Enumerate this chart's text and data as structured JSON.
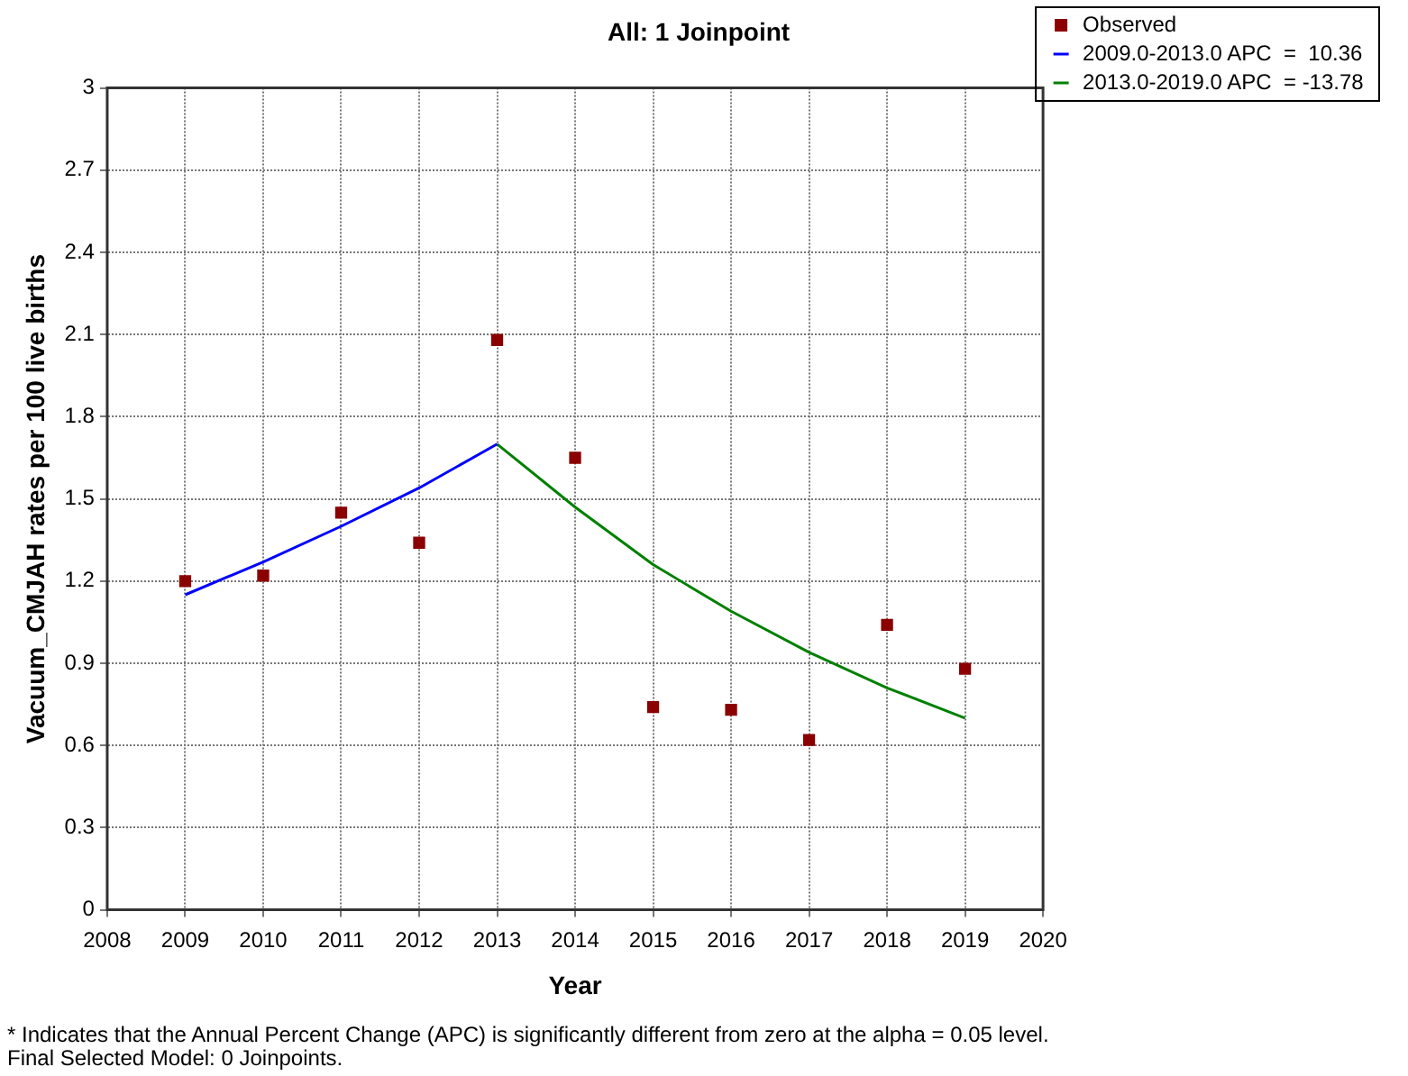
{
  "chart_data": {
    "type": "scatter",
    "title": "All: 1 Joinpoint",
    "xlabel": "Year",
    "ylabel": "Vacuum_CMJAH rates per 100 live births",
    "series": [
      {
        "name": "Observed",
        "type": "scatter",
        "color": "#8b0000",
        "marker": "square",
        "x": [
          2009,
          2010,
          2011,
          2012,
          2013,
          2014,
          2015,
          2016,
          2017,
          2018,
          2019
        ],
        "values": [
          1.2,
          1.22,
          1.45,
          1.34,
          2.08,
          1.65,
          0.74,
          0.73,
          0.62,
          1.04,
          0.88
        ]
      },
      {
        "name": "2009.0-2013.0 APC  =  10.36",
        "type": "line",
        "color": "#0000ff",
        "marker": "none",
        "x": [
          2009,
          2010,
          2011,
          2012,
          2013
        ],
        "values": [
          1.15,
          1.27,
          1.4,
          1.54,
          1.7
        ]
      },
      {
        "name": "2013.0-2019.0 APC  = -13.78",
        "type": "line",
        "color": "#008000",
        "marker": "none",
        "x": [
          2013,
          2014,
          2015,
          2016,
          2017,
          2018,
          2019
        ],
        "values": [
          1.7,
          1.47,
          1.26,
          1.09,
          0.94,
          0.81,
          0.7
        ]
      }
    ],
    "xlim": [
      2008,
      2020
    ],
    "xticks": [
      2008,
      2009,
      2010,
      2011,
      2012,
      2013,
      2014,
      2015,
      2016,
      2017,
      2018,
      2019,
      2020
    ],
    "ylim": [
      0,
      3
    ],
    "yticks": [
      0,
      0.3,
      0.6,
      0.9,
      1.2,
      1.5,
      1.8,
      2.1,
      2.4,
      2.7,
      3
    ],
    "grid": true,
    "legend": "top right",
    "annotations": [
      "* Indicates that the Annual Percent Change (APC) is significantly different from zero at the alpha = 0.05 level.",
      "Final Selected Model: 0 Joinpoints."
    ]
  }
}
